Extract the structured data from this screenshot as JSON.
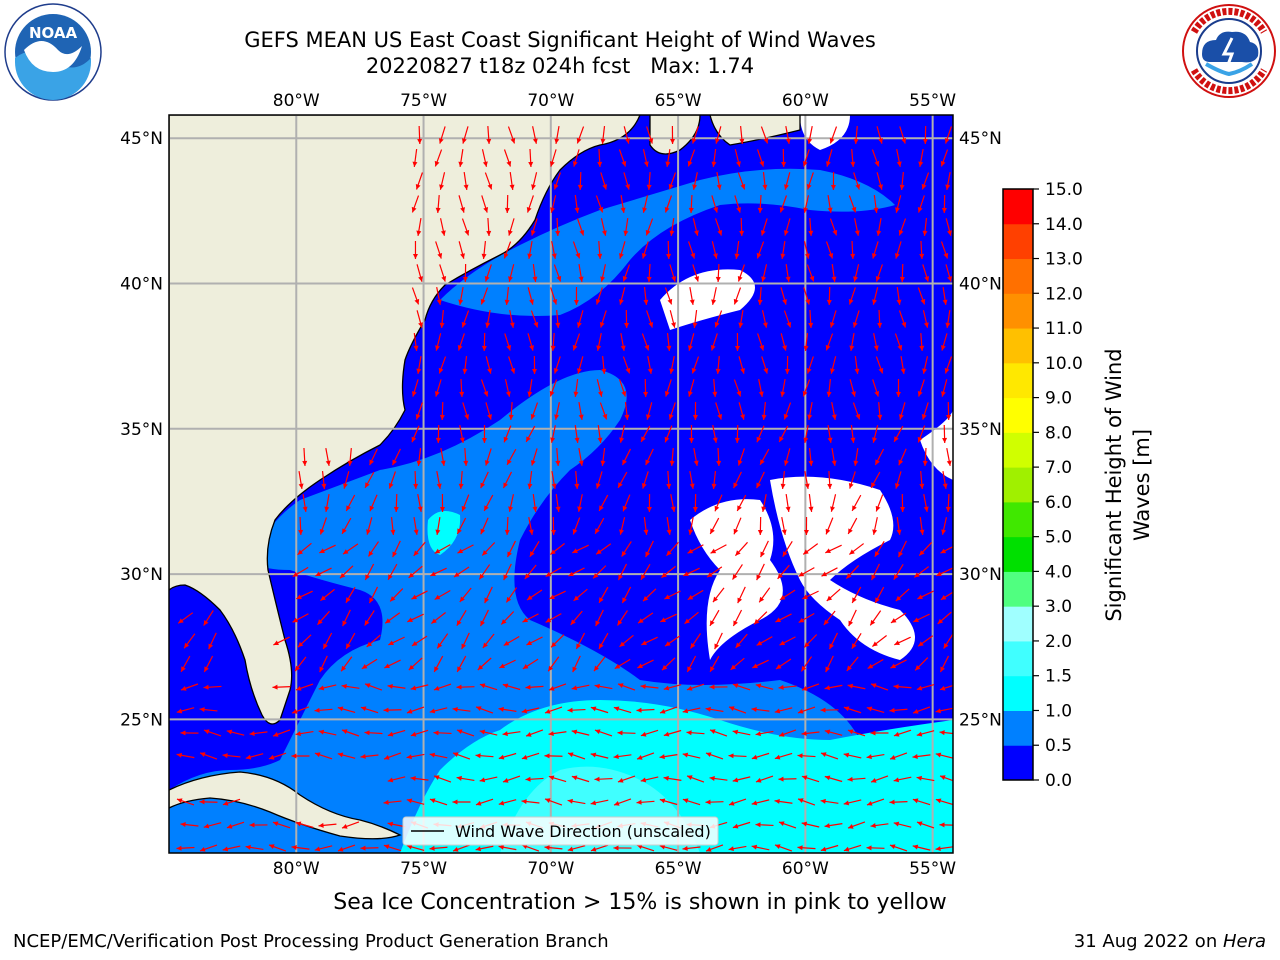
{
  "header": {
    "title_line1": "GEFS MEAN US East Coast Significant Height of Wind Waves",
    "title_line2": "20220827 t18z 024h fcst   Max: 1.74"
  },
  "logos": {
    "left": {
      "name": "NOAA",
      "text": "NOAA",
      "ring_text": "NATIONAL OCEANIC AND ATMOSPHERIC ADMINISTRATION • U.S. DEPARTMENT OF COMMERCE"
    },
    "right": {
      "name": "National Weather Service",
      "ring_text": "NATIONAL WEATHER SERVICE"
    }
  },
  "map": {
    "lon_labels": [
      "80°W",
      "75°W",
      "70°W",
      "65°W",
      "60°W",
      "55°W"
    ],
    "lon_values": [
      -80,
      -75,
      -70,
      -65,
      -60,
      -55
    ],
    "lat_labels": [
      "45°N",
      "40°N",
      "35°N",
      "30°N",
      "25°N"
    ],
    "lat_values": [
      45,
      40,
      35,
      30,
      25
    ],
    "lon_range": [
      -85,
      -54.2
    ],
    "lat_range": [
      20.4,
      45.8
    ],
    "land_color": "#eeeedc",
    "grid_color": "#b0b0b0",
    "arrow_color": "#ff0000",
    "legend_label": "Wind Wave Direction (unscaled)"
  },
  "colorbar": {
    "title_line1": "Significant Height of Wind",
    "title_line2": "Waves [m]",
    "levels": [
      0.0,
      0.5,
      1.0,
      1.5,
      2.0,
      3.0,
      4.0,
      5.0,
      6.0,
      7.0,
      8.0,
      9.0,
      10.0,
      11.0,
      12.0,
      13.0,
      14.0,
      15.0
    ],
    "tick_labels": [
      "0.0",
      "0.5",
      "1.0",
      "1.5",
      "2.0",
      "3.0",
      "4.0",
      "5.0",
      "6.0",
      "7.0",
      "8.0",
      "9.0",
      "10.0",
      "11.0",
      "12.0",
      "13.0",
      "14.0",
      "15.0"
    ],
    "colors": [
      "#0000ff",
      "#0080ff",
      "#00ffff",
      "#40ffff",
      "#a0ffff",
      "#50ff80",
      "#00e000",
      "#40e800",
      "#a0f000",
      "#d0ff00",
      "#ffff00",
      "#ffe800",
      "#ffc000",
      "#ff9000",
      "#ff7000",
      "#ff4000",
      "#ff0000"
    ]
  },
  "caption": "Sea Ice Concentration > 15% is shown in pink to yellow",
  "footer": {
    "left": "NCEP/EMC/Verification Post Processing Product Generation Branch",
    "right_date": "31 Aug 2022 on ",
    "right_host": "Hera"
  }
}
